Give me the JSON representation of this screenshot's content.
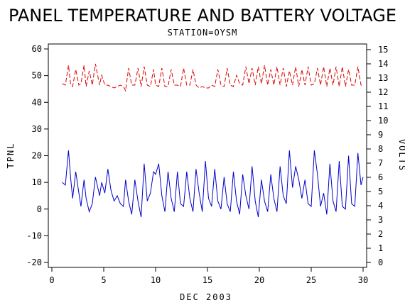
{
  "chart_data": {
    "type": "line",
    "title": "PANEL TEMPERATURE AND BATTERY VOLTAGE",
    "subtitle": "STATION=OYSM",
    "xlabel": "DEC 2003",
    "ylabel_left": "TPNL",
    "ylabel_right": "VOLTS",
    "xlim": [
      0,
      30
    ],
    "ylim_left": [
      -20,
      60
    ],
    "ylim_right": [
      0,
      15
    ],
    "x_ticks": [
      0,
      5,
      10,
      15,
      20,
      25,
      30
    ],
    "y_ticks_left": [
      -20,
      -10,
      0,
      10,
      20,
      30,
      40,
      50,
      60
    ],
    "y_ticks_right": [
      0,
      1,
      2,
      3,
      4,
      5,
      6,
      7,
      8,
      9,
      10,
      11,
      12,
      13,
      14,
      15
    ],
    "grid": false,
    "colors": {
      "temperature": "#0000cc",
      "voltage": "#dd0000"
    },
    "series": [
      {
        "axis": "left",
        "x": [
          1.0,
          1.3,
          1.6,
          1.8,
          2.0,
          2.3,
          2.6,
          2.8,
          3.1,
          3.3,
          3.6,
          3.9,
          4.2,
          4.6,
          4.8,
          5.1,
          5.4,
          5.7,
          6.0,
          6.3,
          6.6,
          6.9,
          7.1,
          7.4,
          7.7,
          8.0,
          8.3,
          8.6,
          8.9,
          9.2,
          9.5,
          9.8,
          10.0,
          10.3,
          10.6,
          10.9,
          11.2,
          11.5,
          11.8,
          12.1,
          12.4,
          12.7,
          13.0,
          13.3,
          13.6,
          13.9,
          14.2,
          14.5,
          14.8,
          15.1,
          15.4,
          15.7,
          16.0,
          16.3,
          16.6,
          16.9,
          17.2,
          17.5,
          17.8,
          18.1,
          18.4,
          18.7,
          19.0,
          19.3,
          19.6,
          19.9,
          20.2,
          20.5,
          20.8,
          21.1,
          21.4,
          21.7,
          22.0,
          22.3,
          22.6,
          22.9,
          23.2,
          23.5,
          23.8,
          24.1,
          24.4,
          24.7,
          25.0,
          25.3,
          25.6,
          25.9,
          26.2,
          26.5,
          26.8,
          27.1,
          27.4,
          27.7,
          28.0,
          28.3,
          28.6,
          28.9,
          29.2,
          29.5,
          29.8,
          30.0
        ],
        "y": [
          10,
          9,
          22,
          12,
          4,
          14,
          6,
          1,
          11,
          4,
          -1,
          2,
          12,
          5,
          10,
          6,
          15,
          7,
          3,
          5,
          2,
          1,
          11,
          3,
          -2,
          11,
          3,
          -3,
          17,
          3,
          6,
          14,
          13,
          17,
          5,
          -1,
          14,
          4,
          -1,
          14,
          2,
          1,
          14,
          4,
          -1,
          15,
          6,
          -1,
          18,
          4,
          1,
          15,
          3,
          0,
          12,
          2,
          -1,
          14,
          3,
          -2,
          13,
          5,
          0,
          16,
          3,
          -3,
          11,
          3,
          -1,
          13,
          4,
          -1,
          16,
          5,
          2,
          22,
          8,
          16,
          11,
          4,
          11,
          2,
          1,
          22,
          13,
          1,
          6,
          -2,
          17,
          3,
          -1,
          18,
          1,
          0,
          20,
          2,
          1,
          21,
          9,
          12
        ]
      },
      {
        "axis": "right",
        "x": [
          1.0,
          1.3,
          1.6,
          1.8,
          2.0,
          2.3,
          2.6,
          2.8,
          3.1,
          3.3,
          3.6,
          3.9,
          4.2,
          4.6,
          4.8,
          5.1,
          5.4,
          5.7,
          6.0,
          6.3,
          6.6,
          6.9,
          7.1,
          7.4,
          7.7,
          8.0,
          8.3,
          8.6,
          8.9,
          9.2,
          9.5,
          9.8,
          10.0,
          10.3,
          10.6,
          10.9,
          11.2,
          11.5,
          11.8,
          12.1,
          12.4,
          12.7,
          13.0,
          13.3,
          13.6,
          13.9,
          14.2,
          14.5,
          14.8,
          15.1,
          15.4,
          15.7,
          16.0,
          16.3,
          16.6,
          16.9,
          17.2,
          17.5,
          17.8,
          18.1,
          18.4,
          18.7,
          19.0,
          19.3,
          19.6,
          19.9,
          20.2,
          20.5,
          20.8,
          21.1,
          21.4,
          21.7,
          22.0,
          22.3,
          22.6,
          22.9,
          23.2,
          23.5,
          23.8,
          24.1,
          24.4,
          24.7,
          25.0,
          25.3,
          25.6,
          25.9,
          26.2,
          26.5,
          26.8,
          27.1,
          27.4,
          27.7,
          28.0,
          28.3,
          28.6,
          28.9,
          29.2,
          29.5,
          29.8,
          30.0
        ],
        "y": [
          12.6,
          12.5,
          13.9,
          12.6,
          12.4,
          13.6,
          12.5,
          12.6,
          13.9,
          12.4,
          13.5,
          12.5,
          14.0,
          12.5,
          13.2,
          12.5,
          12.5,
          12.4,
          12.3,
          12.4,
          12.5,
          12.4,
          12.1,
          13.7,
          12.5,
          12.5,
          13.7,
          12.4,
          13.8,
          12.5,
          12.4,
          13.6,
          12.5,
          12.4,
          13.7,
          12.4,
          12.4,
          13.6,
          12.5,
          12.5,
          12.4,
          13.7,
          12.5,
          12.5,
          13.6,
          12.5,
          12.3,
          12.4,
          12.3,
          12.3,
          12.5,
          12.4,
          13.6,
          12.5,
          12.4,
          13.7,
          12.5,
          12.4,
          13.2,
          12.6,
          12.5,
          13.8,
          12.6,
          13.7,
          12.5,
          13.8,
          12.6,
          13.9,
          12.5,
          13.6,
          12.5,
          13.8,
          12.5,
          13.7,
          12.4,
          13.5,
          12.5,
          13.8,
          12.4,
          13.6,
          12.5,
          13.8,
          12.5,
          12.6,
          13.7,
          12.5,
          13.8,
          12.4,
          13.7,
          12.5,
          13.8,
          12.4,
          13.8,
          12.4,
          13.6,
          12.5,
          12.5,
          13.8,
          12.5,
          12.5
        ]
      }
    ]
  }
}
